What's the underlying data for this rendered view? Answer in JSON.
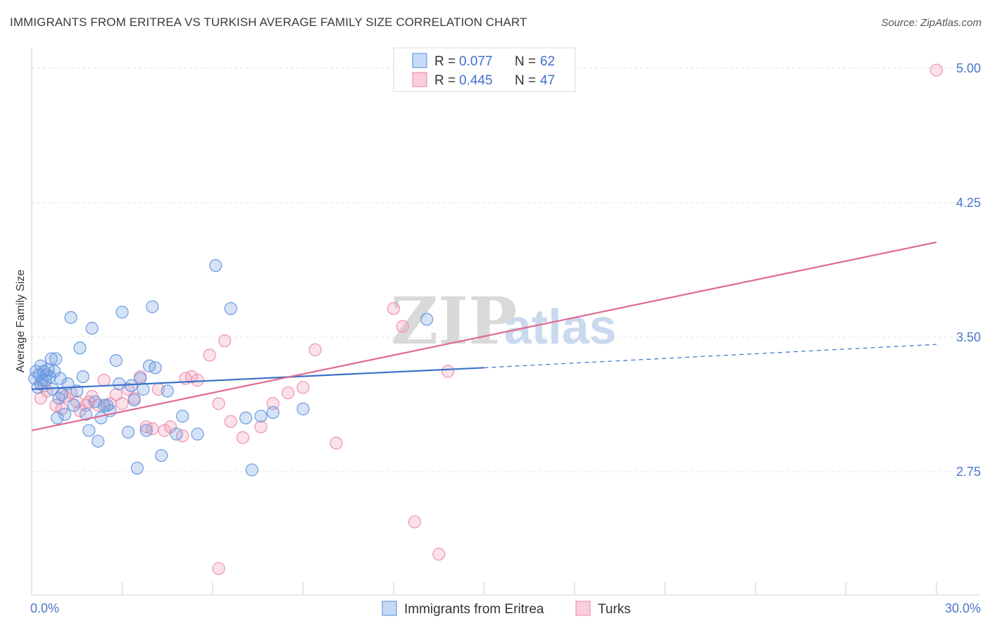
{
  "title": "IMMIGRANTS FROM ERITREA VS TURKISH AVERAGE FAMILY SIZE CORRELATION CHART",
  "source": "Source: ZipAtlas.com",
  "watermark": {
    "zip": "ZIP",
    "atlas": "atlas"
  },
  "legend": {
    "rows": [
      {
        "r_label": "R =",
        "r_value": "0.077",
        "n_label": "N =",
        "n_value": "62"
      },
      {
        "r_label": "R =",
        "r_value": "0.445",
        "n_label": "N =",
        "n_value": "47"
      }
    ]
  },
  "bottom_legend": [
    "Immigrants from Eritrea",
    "Turks"
  ],
  "chart_data": {
    "type": "scatter",
    "title": "IMMIGRANTS FROM ERITREA VS TURKISH AVERAGE FAMILY SIZE CORRELATION CHART",
    "xlabel": "",
    "ylabel": "Average Family Size",
    "xlim": [
      0,
      30
    ],
    "ylim": [
      2.25,
      5.1
    ],
    "x_tick_labels": [
      "0.0%",
      "30.0%"
    ],
    "y_ticks": [
      2.75,
      3.5,
      4.25,
      5.0
    ],
    "y_tick_labels": [
      "2.75",
      "3.50",
      "4.25",
      "5.00"
    ],
    "grid": true,
    "legend_position": "top-center",
    "colors": {
      "eritrea": "#6a9be0",
      "turks": "#ef93b0",
      "eritrea_line": "#3a72c8",
      "turks_line": "#e06a93"
    },
    "series": [
      {
        "name": "Immigrants from Eritrea",
        "R": 0.077,
        "N": 62,
        "trend": {
          "x0": 0,
          "y0": 3.21,
          "x1": 15,
          "y1": 3.33,
          "dashed_to_x": 30,
          "dashed_to_y": 3.46
        },
        "points": [
          [
            0.1,
            3.27
          ],
          [
            0.15,
            3.31
          ],
          [
            0.2,
            3.22
          ],
          [
            0.25,
            3.29
          ],
          [
            0.3,
            3.24
          ],
          [
            0.3,
            3.34
          ],
          [
            0.35,
            3.26
          ],
          [
            0.4,
            3.31
          ],
          [
            0.45,
            3.26
          ],
          [
            0.5,
            3.29
          ],
          [
            0.55,
            3.32
          ],
          [
            0.6,
            3.28
          ],
          [
            0.65,
            3.38
          ],
          [
            0.7,
            3.21
          ],
          [
            0.75,
            3.31
          ],
          [
            0.8,
            3.38
          ],
          [
            0.85,
            3.05
          ],
          [
            0.9,
            3.16
          ],
          [
            0.95,
            3.27
          ],
          [
            1.0,
            3.18
          ],
          [
            1.1,
            3.07
          ],
          [
            1.2,
            3.24
          ],
          [
            1.3,
            3.61
          ],
          [
            1.4,
            3.12
          ],
          [
            1.5,
            3.2
          ],
          [
            1.6,
            3.44
          ],
          [
            1.7,
            3.28
          ],
          [
            1.8,
            3.07
          ],
          [
            1.9,
            2.98
          ],
          [
            2.0,
            3.55
          ],
          [
            2.1,
            3.14
          ],
          [
            2.2,
            2.92
          ],
          [
            2.3,
            3.05
          ],
          [
            2.4,
            3.12
          ],
          [
            2.5,
            3.12
          ],
          [
            2.6,
            3.09
          ],
          [
            2.8,
            3.37
          ],
          [
            2.9,
            3.24
          ],
          [
            3.0,
            3.64
          ],
          [
            3.2,
            2.97
          ],
          [
            3.3,
            3.23
          ],
          [
            3.4,
            3.15
          ],
          [
            3.5,
            2.77
          ],
          [
            3.6,
            3.27
          ],
          [
            3.7,
            3.21
          ],
          [
            3.8,
            2.98
          ],
          [
            3.9,
            3.34
          ],
          [
            4.0,
            3.67
          ],
          [
            4.1,
            3.33
          ],
          [
            4.3,
            2.84
          ],
          [
            4.5,
            3.2
          ],
          [
            4.8,
            2.96
          ],
          [
            5.0,
            3.06
          ],
          [
            5.5,
            2.96
          ],
          [
            6.1,
            3.9
          ],
          [
            6.6,
            3.66
          ],
          [
            7.1,
            3.05
          ],
          [
            7.3,
            2.76
          ],
          [
            7.6,
            3.06
          ],
          [
            8.0,
            3.08
          ],
          [
            9.0,
            3.1
          ],
          [
            13.1,
            3.6
          ]
        ]
      },
      {
        "name": "Turks",
        "R": 0.445,
        "N": 47,
        "trend": {
          "x0": 0,
          "y0": 2.98,
          "x1": 30,
          "y1": 4.03
        },
        "points": [
          [
            0.3,
            3.16
          ],
          [
            0.4,
            3.23
          ],
          [
            0.5,
            3.2
          ],
          [
            0.8,
            3.12
          ],
          [
            1.0,
            3.1
          ],
          [
            1.1,
            3.17
          ],
          [
            1.3,
            3.19
          ],
          [
            1.5,
            3.14
          ],
          [
            1.6,
            3.09
          ],
          [
            1.8,
            3.12
          ],
          [
            1.9,
            3.14
          ],
          [
            2.0,
            3.17
          ],
          [
            2.2,
            3.12
          ],
          [
            2.4,
            3.26
          ],
          [
            2.6,
            3.13
          ],
          [
            2.8,
            3.18
          ],
          [
            3.0,
            3.13
          ],
          [
            3.2,
            3.21
          ],
          [
            3.4,
            3.16
          ],
          [
            3.6,
            3.28
          ],
          [
            3.8,
            3.0
          ],
          [
            4.0,
            2.99
          ],
          [
            4.2,
            3.21
          ],
          [
            4.4,
            2.98
          ],
          [
            4.6,
            3.0
          ],
          [
            5.0,
            2.95
          ],
          [
            5.1,
            3.27
          ],
          [
            5.3,
            3.28
          ],
          [
            5.5,
            3.26
          ],
          [
            5.9,
            3.4
          ],
          [
            6.2,
            3.13
          ],
          [
            6.4,
            3.48
          ],
          [
            6.6,
            3.03
          ],
          [
            7.0,
            2.94
          ],
          [
            7.6,
            3.0
          ],
          [
            8.0,
            3.13
          ],
          [
            8.5,
            3.19
          ],
          [
            9.0,
            3.22
          ],
          [
            9.4,
            3.43
          ],
          [
            10.1,
            2.91
          ],
          [
            12.0,
            3.66
          ],
          [
            12.3,
            3.56
          ],
          [
            12.7,
            2.47
          ],
          [
            13.5,
            2.29
          ],
          [
            13.8,
            3.31
          ],
          [
            30.0,
            4.99
          ],
          [
            6.2,
            2.21
          ]
        ]
      }
    ]
  }
}
